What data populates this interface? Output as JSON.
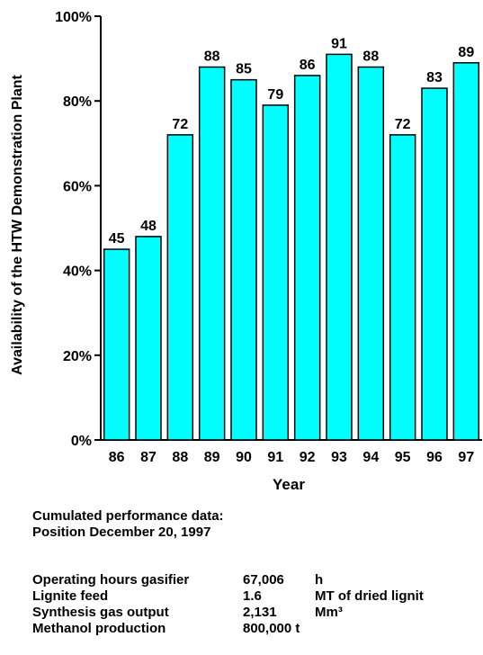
{
  "chart_data": {
    "type": "bar",
    "categories": [
      "86",
      "87",
      "88",
      "89",
      "90",
      "91",
      "92",
      "93",
      "94",
      "95",
      "96",
      "97"
    ],
    "values": [
      45,
      48,
      72,
      88,
      85,
      79,
      86,
      91,
      88,
      72,
      83,
      89
    ],
    "data_labels": [
      "45",
      "48",
      "72",
      "88",
      "85",
      "79",
      "86",
      "91",
      "88",
      "72",
      "83",
      "89"
    ],
    "xlabel": "Year",
    "ylabel": "Availability of the HTW Demonstration Plant",
    "ylim": [
      0,
      100
    ],
    "yticks": [
      0,
      20,
      40,
      60,
      80,
      100
    ],
    "ytick_labels": [
      "0%",
      "20%",
      "40%",
      "60%",
      "80%",
      "100%"
    ],
    "grid": false,
    "bar_color": "#00FFFF",
    "bar_edge_color": "#000000"
  },
  "notes": {
    "line1": "Cumulated performance data:",
    "line2": "Position December 20, 1997"
  },
  "performance": [
    {
      "label": "Operating hours gasifier",
      "value": "67,006",
      "unit": "h"
    },
    {
      "label": "Lignite feed",
      "value": "1.6",
      "unit": "MT of dried lignit"
    },
    {
      "label": "Synthesis gas output",
      "value": "2,131",
      "unit": "Mm³"
    },
    {
      "label": "Methanol production",
      "value": "800,000 t",
      "unit": ""
    }
  ]
}
